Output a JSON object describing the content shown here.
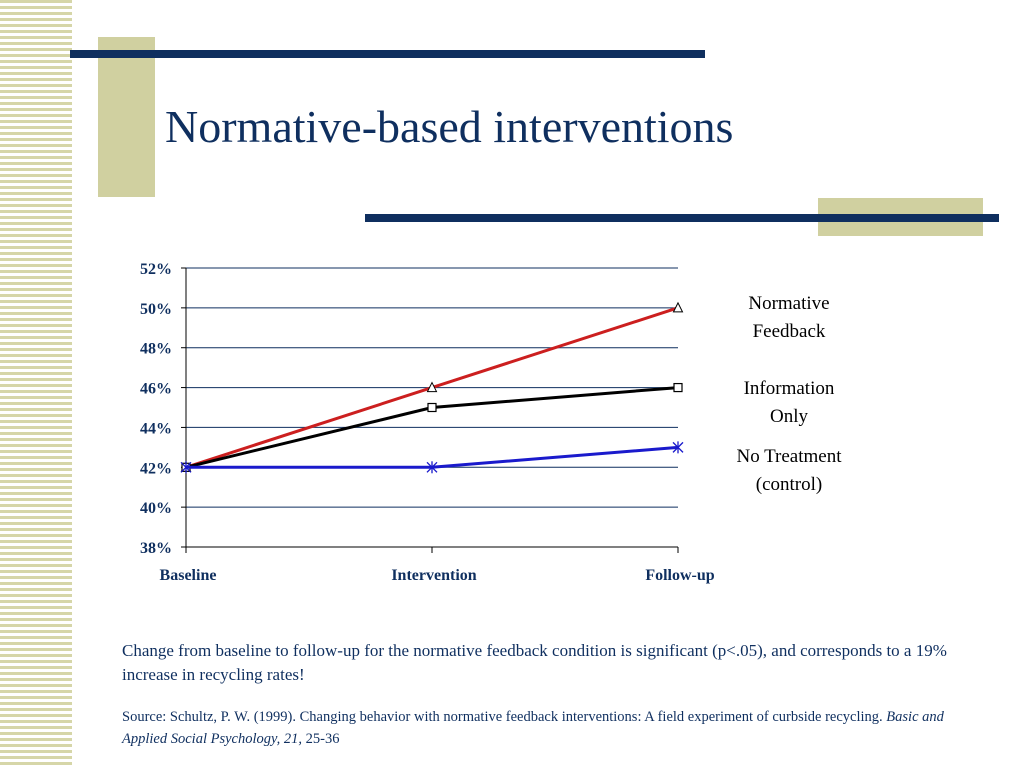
{
  "title": "Normative-based interventions",
  "chart_data": {
    "type": "line",
    "categories": [
      "Baseline",
      "Intervention",
      "Follow-up"
    ],
    "y_ticks": [
      "38%",
      "40%",
      "42%",
      "44%",
      "46%",
      "48%",
      "50%",
      "52%"
    ],
    "ylim": [
      38,
      52
    ],
    "grid": true,
    "legend_placement": "right",
    "series": [
      {
        "name": "Normative Feedback",
        "label_lines": [
          "Normative",
          "Feedback"
        ],
        "values": [
          42,
          46,
          50
        ],
        "color": "#cc1f1f",
        "marker": "triangle"
      },
      {
        "name": "Information Only",
        "label_lines": [
          "Information",
          "Only"
        ],
        "values": [
          42,
          45,
          46
        ],
        "color": "#000000",
        "marker": "square"
      },
      {
        "name": "No Treatment (control)",
        "label_lines": [
          "No Treatment",
          "(control)"
        ],
        "values": [
          42,
          42,
          43
        ],
        "color": "#1a1acc",
        "marker": "star"
      }
    ]
  },
  "caption": "Change from baseline to follow-up for the normative feedback condition is significant (p<.05), and corresponds to a 19% increase in recycling rates!",
  "source": {
    "prefix": "Source: Schultz, P. W. (1999). Changing behavior with normative feedback interventions: A field experiment of curbside recycling. ",
    "journal": "Basic and Applied Social Psychology, 21,",
    "pages": " 25-36"
  }
}
